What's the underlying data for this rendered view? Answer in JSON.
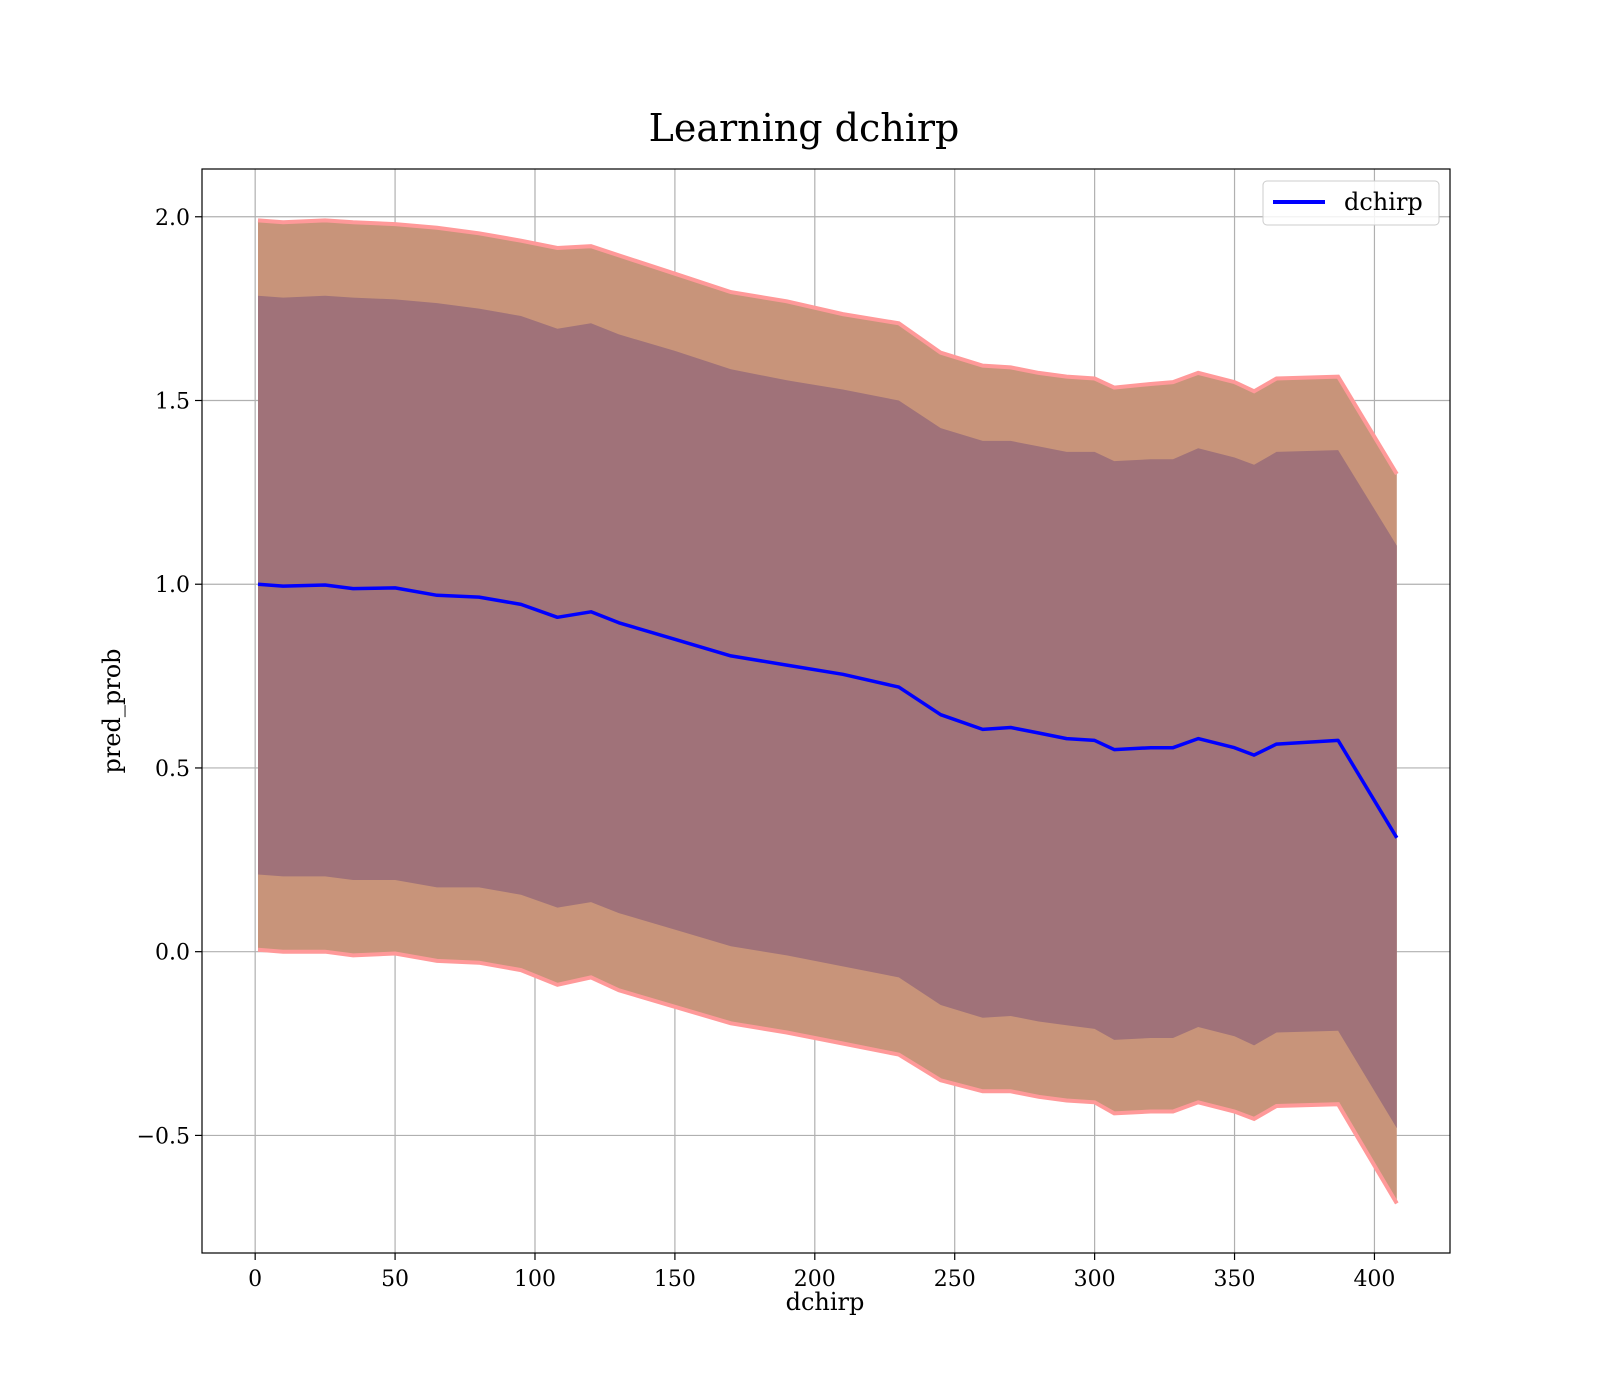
{
  "chart_data": {
    "type": "line",
    "title": "Learning dchirp",
    "xlabel": "dchirp",
    "ylabel": "pred_prob",
    "xlim": [
      -19,
      427
    ],
    "ylim": [
      -0.82,
      2.13
    ],
    "xticks": [
      0,
      50,
      100,
      150,
      200,
      250,
      300,
      350,
      400
    ],
    "yticks": [
      -0.5,
      0.0,
      0.5,
      1.0,
      1.5,
      2.0
    ],
    "xtick_labels": [
      "0",
      "50",
      "100",
      "150",
      "200",
      "250",
      "300",
      "350",
      "400"
    ],
    "ytick_labels": [
      "−0.5",
      "0.0",
      "0.5",
      "1.0",
      "1.5",
      "2.0"
    ],
    "grid": true,
    "legend": {
      "placement": "top-right",
      "entries": [
        {
          "name": "dchirp",
          "color": "#0000ff"
        }
      ]
    },
    "colors": {
      "line": "#0000ff",
      "outer_band": "#c8947a",
      "inner_band": "#a07279",
      "band_edge": "#ff9999"
    },
    "series": [
      {
        "name": "dchirp",
        "x": [
          1,
          10,
          25,
          35,
          50,
          65,
          80,
          95,
          108,
          120,
          130,
          150,
          170,
          190,
          210,
          230,
          245,
          260,
          270,
          280,
          290,
          300,
          307,
          320,
          328,
          337,
          350,
          357,
          365,
          387,
          408
        ],
        "y": [
          1.0,
          0.995,
          0.998,
          0.988,
          0.99,
          0.97,
          0.965,
          0.945,
          0.91,
          0.925,
          0.895,
          0.85,
          0.805,
          0.78,
          0.755,
          0.72,
          0.645,
          0.605,
          0.61,
          0.595,
          0.58,
          0.575,
          0.55,
          0.555,
          0.555,
          0.58,
          0.555,
          0.535,
          0.565,
          0.575,
          0.31
        ]
      }
    ],
    "bands": [
      {
        "name": "outer",
        "upper": [
          1.99,
          1.985,
          1.99,
          1.985,
          1.98,
          1.97,
          1.955,
          1.935,
          1.915,
          1.92,
          1.895,
          1.845,
          1.795,
          1.77,
          1.735,
          1.71,
          1.63,
          1.595,
          1.59,
          1.575,
          1.565,
          1.56,
          1.535,
          1.545,
          1.55,
          1.575,
          1.55,
          1.525,
          1.56,
          1.565,
          1.3
        ],
        "lower": [
          0.005,
          0.0,
          0.0,
          -0.01,
          -0.005,
          -0.025,
          -0.03,
          -0.05,
          -0.09,
          -0.07,
          -0.105,
          -0.15,
          -0.195,
          -0.22,
          -0.25,
          -0.28,
          -0.35,
          -0.38,
          -0.38,
          -0.395,
          -0.405,
          -0.41,
          -0.44,
          -0.435,
          -0.435,
          -0.41,
          -0.435,
          -0.455,
          -0.42,
          -0.415,
          -0.685
        ]
      },
      {
        "name": "inner",
        "upper": [
          1.785,
          1.78,
          1.785,
          1.78,
          1.775,
          1.765,
          1.75,
          1.73,
          1.695,
          1.71,
          1.68,
          1.635,
          1.585,
          1.555,
          1.53,
          1.5,
          1.425,
          1.39,
          1.39,
          1.375,
          1.36,
          1.36,
          1.335,
          1.34,
          1.34,
          1.37,
          1.345,
          1.325,
          1.36,
          1.365,
          1.105
        ],
        "lower": [
          0.21,
          0.205,
          0.205,
          0.195,
          0.195,
          0.175,
          0.175,
          0.155,
          0.12,
          0.135,
          0.105,
          0.06,
          0.015,
          -0.01,
          -0.04,
          -0.07,
          -0.145,
          -0.18,
          -0.175,
          -0.19,
          -0.2,
          -0.21,
          -0.24,
          -0.235,
          -0.235,
          -0.205,
          -0.23,
          -0.255,
          -0.22,
          -0.215,
          -0.48
        ]
      }
    ]
  }
}
